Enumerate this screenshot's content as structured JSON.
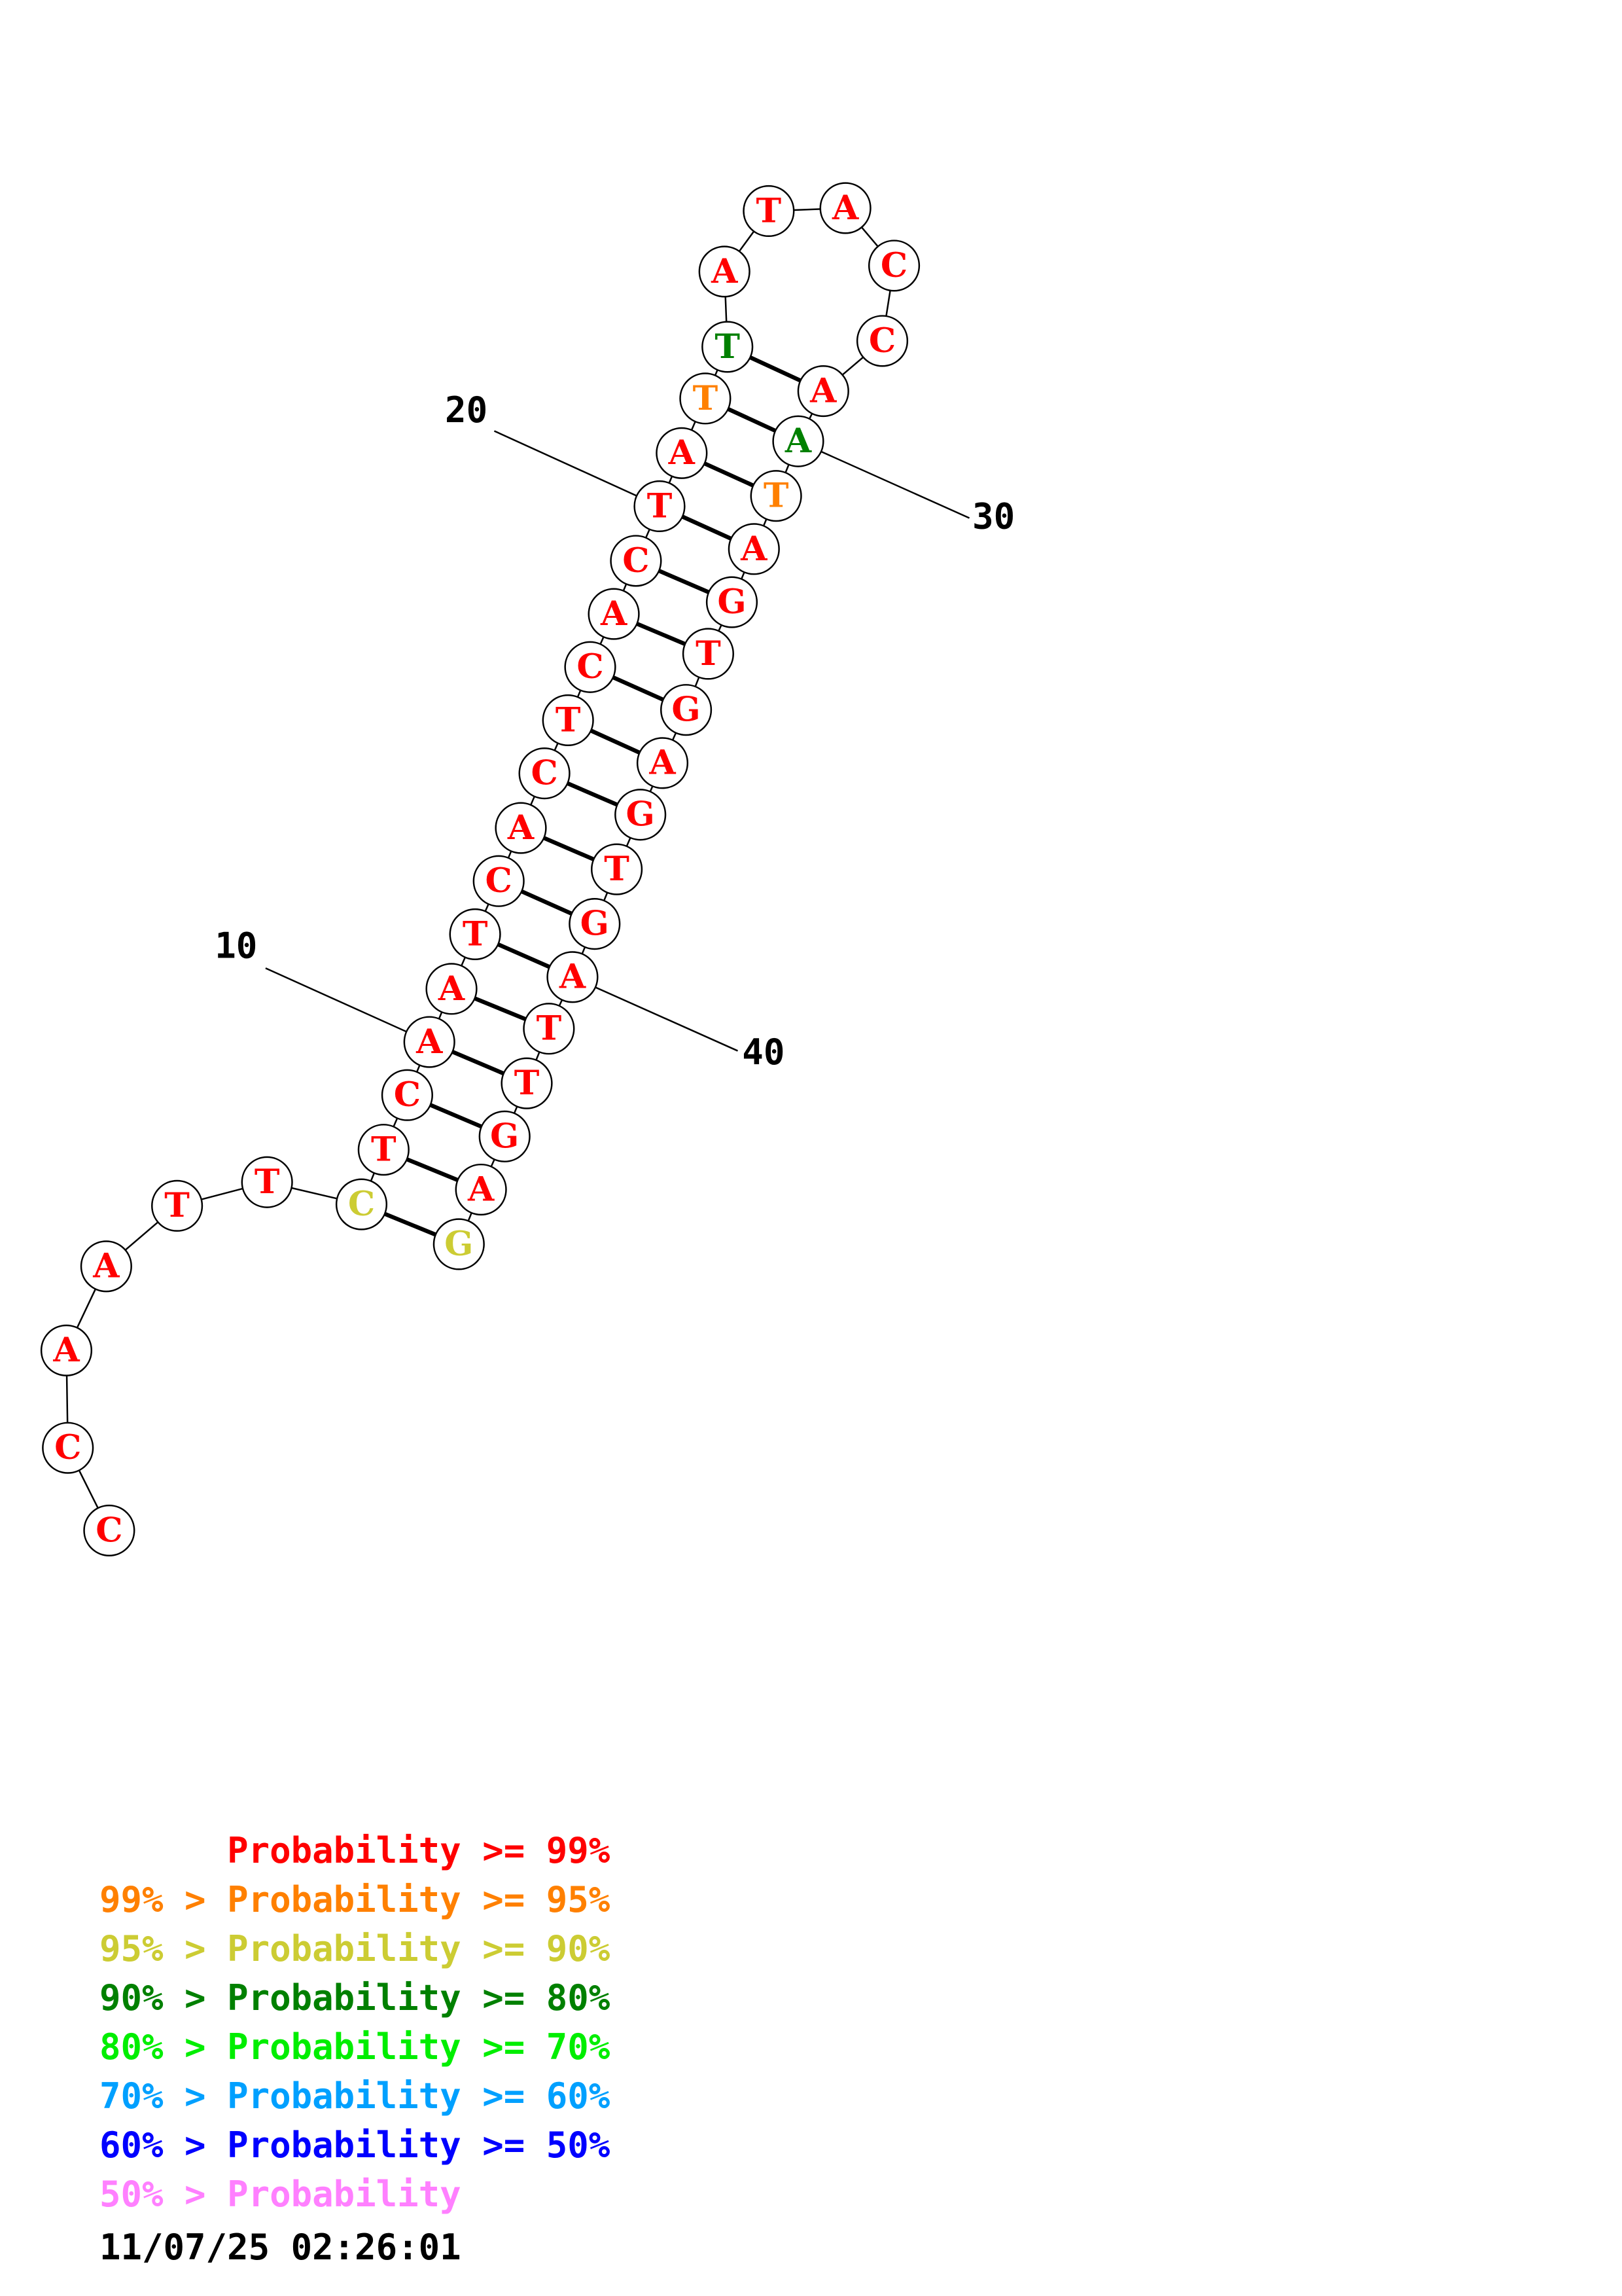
{
  "sequence": [
    "C",
    "C",
    "A",
    "A",
    "T",
    "T",
    "C",
    "T",
    "C",
    "A",
    "A",
    "T",
    "C",
    "A",
    "C",
    "T",
    "C",
    "A",
    "C",
    "T",
    "A",
    "T",
    "T",
    "A",
    "T",
    "A",
    "C",
    "C",
    "A",
    "A",
    "T",
    "A",
    "G",
    "T",
    "G",
    "A",
    "G",
    "T",
    "G",
    "A",
    "T",
    "T",
    "G",
    "A",
    "G"
  ],
  "prob_class": [
    "r",
    "r",
    "r",
    "r",
    "r",
    "r",
    "y",
    "r",
    "r",
    "r",
    "r",
    "r",
    "r",
    "r",
    "r",
    "r",
    "r",
    "r",
    "r",
    "r",
    "r",
    "o",
    "g",
    "r",
    "r",
    "r",
    "r",
    "r",
    "r",
    "g",
    "o",
    "r",
    "r",
    "r",
    "r",
    "r",
    "r",
    "r",
    "r",
    "r",
    "r",
    "r",
    "r",
    "r",
    "y"
  ],
  "pairs": [
    [
      7,
      45
    ],
    [
      8,
      44
    ],
    [
      9,
      43
    ],
    [
      10,
      42
    ],
    [
      11,
      41
    ],
    [
      12,
      40
    ],
    [
      13,
      39
    ],
    [
      14,
      38
    ],
    [
      15,
      37
    ],
    [
      16,
      36
    ],
    [
      17,
      35
    ],
    [
      18,
      34
    ],
    [
      19,
      33
    ],
    [
      20,
      32
    ],
    [
      21,
      31
    ],
    [
      22,
      30
    ],
    [
      23,
      29
    ]
  ],
  "position_labels": [
    {
      "index": 10,
      "text": "10"
    },
    {
      "index": 20,
      "text": "20"
    },
    {
      "index": 30,
      "text": "30"
    },
    {
      "index": 40,
      "text": "40"
    }
  ],
  "colors": {
    "r": "#ff0000",
    "o": "#ff8000",
    "y": "#cccc33",
    "g": "#008000",
    "lime": "#00ee00",
    "sky": "#00a0ff",
    "blue": "#0000ff",
    "pink": "#ff80ff"
  },
  "legend": [
    {
      "prefix": "",
      "mid": "Probability",
      "suffix": " >= 99%",
      "color": "#ff0000"
    },
    {
      "prefix": "99% > ",
      "mid": "Probability",
      "suffix": " >= 95%",
      "color": "#ff8000"
    },
    {
      "prefix": "95% > ",
      "mid": "Probability",
      "suffix": " >= 90%",
      "color": "#cccc33"
    },
    {
      "prefix": "90% > ",
      "mid": "Probability",
      "suffix": " >= 80%",
      "color": "#008000"
    },
    {
      "prefix": "80% > ",
      "mid": "Probability",
      "suffix": " >= 70%",
      "color": "#00ee00"
    },
    {
      "prefix": "70% > ",
      "mid": "Probability",
      "suffix": " >= 60%",
      "color": "#00a0ff"
    },
    {
      "prefix": "60% > ",
      "mid": "Probability",
      "suffix": " >= 50%",
      "color": "#0000ff"
    },
    {
      "prefix": "50% > ",
      "mid": "Probability",
      "suffix": "",
      "color": "#ff80ff"
    }
  ],
  "timestamp": "11/07/25 02:26:01"
}
